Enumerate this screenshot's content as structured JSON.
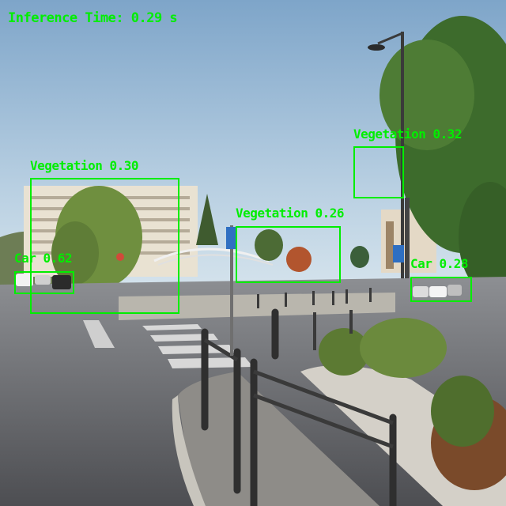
{
  "hud": {
    "inference_text": "Inference Time: 0.29 s",
    "color": "#00ee00"
  },
  "detections": [
    {
      "label": "Vegetation",
      "score": "0.30",
      "text": "Vegetation 0.30"
    },
    {
      "label": "Vegetation",
      "score": "0.32",
      "text": "Vegetation 0.32"
    },
    {
      "label": "Vegetation",
      "score": "0.26",
      "text": "Vegetation 0.26"
    },
    {
      "label": "Car",
      "score": "0.62",
      "text": "Car 0.62"
    },
    {
      "label": "Car",
      "score": "0.28",
      "text": "Car 0.28"
    }
  ],
  "colors": {
    "box": "#00ee00",
    "sky_top": "#7fa6c8",
    "sky_bottom": "#d8e6ee",
    "road": "#6e6f72",
    "foliage": "#3d6b2c"
  }
}
